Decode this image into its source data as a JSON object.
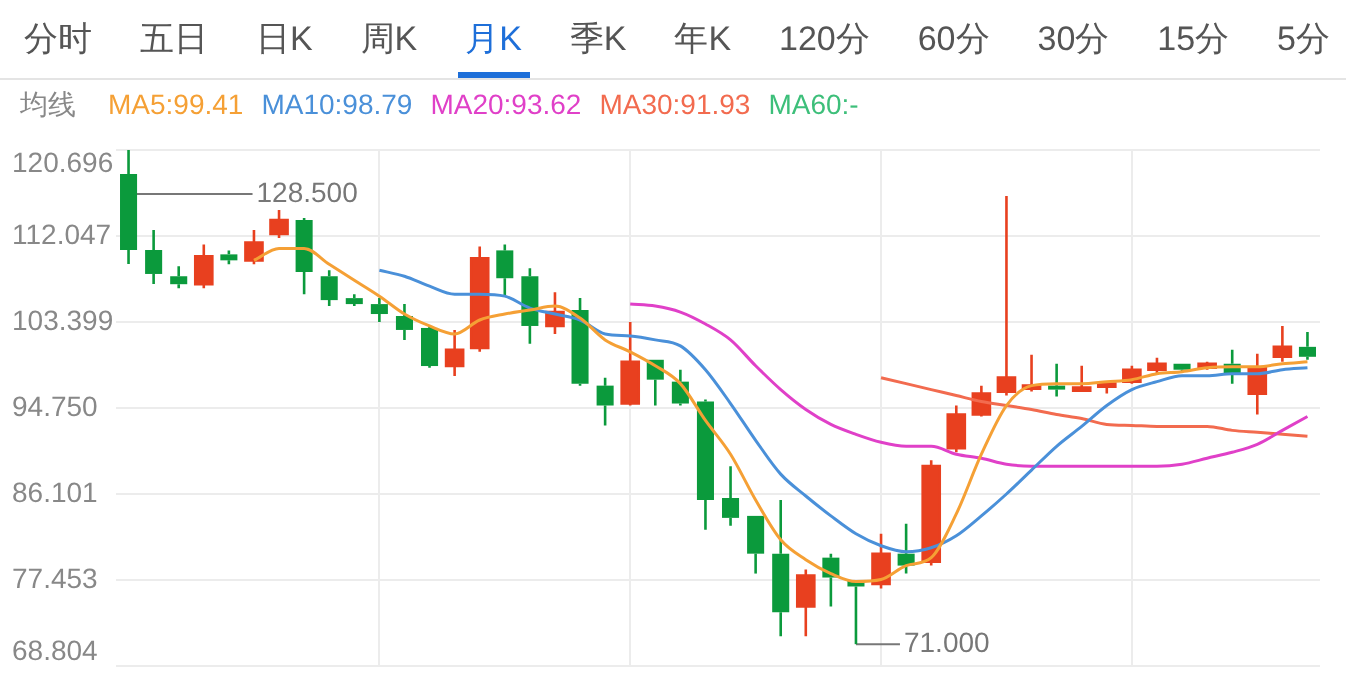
{
  "chart_data": {
    "type": "candlestick",
    "legend_title": "均线",
    "legend": "top left",
    "grid": true,
    "tick_labels": "y",
    "annotations": [
      "分时",
      "五日",
      "日K",
      "周K",
      "月K",
      "季K",
      "年K",
      "120分",
      "60分",
      "30分",
      "15分",
      "5分",
      {
        "text": "128.500"
      },
      {
        "text": "71.000"
      }
    ],
    "categories": [
      null,
      null,
      null,
      null,
      null,
      null,
      null,
      null,
      null,
      null,
      null,
      null,
      null,
      null,
      null,
      null,
      null,
      null,
      null,
      null,
      null,
      null,
      null,
      null,
      null,
      null,
      null,
      null,
      null,
      null,
      null,
      null,
      null,
      null,
      null,
      null,
      null,
      null,
      null,
      null,
      null,
      null,
      null,
      null,
      null,
      null,
      null,
      null
    ],
    "ylim": [
      68.804,
      120.696
    ],
    "yticks": [
      68.804,
      77.453,
      86.101,
      {
        "value": 94.75,
        "label": "94.750"
      },
      103.399,
      112.047,
      120.696
    ],
    "ohlc": [
      [
        118.28,
        120.696,
        109.23,
        110.64
      ],
      [
        110.64,
        112.65,
        107.22,
        108.23
      ],
      [
        108.0,
        109.0,
        106.8,
        107.2
      ],
      [
        107.2,
        111.2,
        106.8,
        110.0
      ],
      [
        110.2,
        110.6,
        109.2,
        109.6
      ],
      [
        109.6,
        112.65,
        109.2,
        111.4
      ],
      [
        112.25,
        114.66,
        111.85,
        113.65
      ],
      [
        113.65,
        113.85,
        106.2,
        108.43
      ],
      [
        108.0,
        108.6,
        105.0,
        105.6
      ],
      [
        105.8,
        106.2,
        105.0,
        105.2
      ],
      [
        105.2,
        105.8,
        103.4,
        104.2
      ],
      [
        104.0,
        105.2,
        101.6,
        102.6
      ],
      [
        102.8,
        103.0,
        98.8,
        98.97
      ],
      [
        98.97,
        102.6,
        97.97,
        100.6
      ],
      [
        100.8,
        111.0,
        100.4,
        109.8
      ],
      [
        110.6,
        111.2,
        106.0,
        107.8
      ],
      [
        108.0,
        108.8,
        101.2,
        103.0
      ],
      [
        103.0,
        106.4,
        102.2,
        104.4
      ],
      [
        104.6,
        105.8,
        97.0,
        97.2
      ],
      [
        97.0,
        97.8,
        93.0,
        95.0
      ],
      [
        95.2,
        103.4,
        95.0,
        99.4
      ],
      [
        99.6,
        99.6,
        95.0,
        97.6
      ],
      [
        97.4,
        98.6,
        95.0,
        95.2
      ],
      [
        95.4,
        95.6,
        82.5,
        85.5
      ],
      [
        85.7,
        88.9,
        82.9,
        83.7
      ],
      [
        83.9,
        83.9,
        78.1,
        80.1
      ],
      [
        80.1,
        85.5,
        71.8,
        74.2
      ],
      [
        74.8,
        78.5,
        71.8,
        77.9
      ],
      [
        79.7,
        80.1,
        74.8,
        77.7
      ],
      [
        77.45,
        77.45,
        71.0,
        76.8
      ],
      [
        77.05,
        82.1,
        76.6,
        80.1
      ],
      [
        80.1,
        83.1,
        78.1,
        78.9
      ],
      [
        79.3,
        89.5,
        78.9,
        88.9
      ],
      [
        90.7,
        95.0,
        90.3,
        94.1
      ],
      [
        94.1,
        97.0,
        93.9,
        96.2
      ],
      [
        96.4,
        116.07,
        96.0,
        97.8
      ],
      [
        96.8,
        100.1,
        96.4,
        97.0
      ],
      [
        97.0,
        99.2,
        95.9,
        96.6
      ],
      [
        96.6,
        99.0,
        96.4,
        96.8
      ],
      [
        97.0,
        97.4,
        96.2,
        97.2
      ],
      [
        97.4,
        99.0,
        97.2,
        98.6
      ],
      [
        98.6,
        99.8,
        98.2,
        99.2
      ],
      [
        99.2,
        99.2,
        98.4,
        98.6
      ],
      [
        98.8,
        99.4,
        98.6,
        99.2
      ],
      [
        99.2,
        100.6,
        97.2,
        98.2
      ],
      [
        96.2,
        100.2,
        94.1,
        98.8
      ],
      [
        99.9,
        103.0,
        99.4,
        100.9
      ],
      [
        100.9,
        102.4,
        99.6,
        99.9
      ]
    ],
    "colors": [
      "#0b9a3c",
      "#0b9a3c",
      "#0b9a3c",
      "#e8401f",
      "#0b9a3c",
      "#e8401f",
      "#e8401f",
      "#0b9a3c",
      "#0b9a3c",
      "#0b9a3c",
      "#0b9a3c",
      "#0b9a3c",
      "#0b9a3c",
      "#e8401f",
      "#e8401f",
      "#0b9a3c",
      "#0b9a3c",
      "#e8401f",
      "#0b9a3c",
      "#0b9a3c",
      "#e8401f",
      "#0b9a3c",
      "#0b9a3c",
      "#0b9a3c",
      "#0b9a3c",
      "#0b9a3c",
      "#0b9a3c",
      "#e8401f",
      "#0b9a3c",
      "#0b9a3c",
      "#e8401f",
      "#0b9a3c",
      "#e8401f",
      "#e8401f",
      "#e8401f",
      "#e8401f",
      "#e8401f",
      "#0b9a3c",
      "#e8401f",
      "#e8401f",
      "#e8401f",
      "#e8401f",
      "#0b9a3c",
      "#e8401f",
      "#0b9a3c",
      "#e8401f",
      "#e8401f",
      "#0b9a3c"
    ],
    "series": [
      {
        "name": "MA5:99.41",
        "color": "#f5a035",
        "type": "line",
        "values": [
          null,
          null,
          null,
          null,
          null,
          109.6,
          110.8,
          110.8,
          109.2,
          107.6,
          106.0,
          104.2,
          103.0,
          102.2,
          103.6,
          104.2,
          104.6,
          105.0,
          103.8,
          101.6,
          100.4,
          99.0,
          97.2,
          93.5,
          90.1,
          85.5,
          81.5,
          79.5,
          78.1,
          77.3,
          77.5,
          78.9,
          79.7,
          84.1,
          90.1,
          95.0,
          97.0,
          97.2,
          97.2,
          97.4,
          97.6,
          98.2,
          98.4,
          98.8,
          98.9,
          98.9,
          99.2,
          99.4
        ]
      },
      {
        "name": "MA10:98.79",
        "color": "#4a90d9",
        "type": "line",
        "values": [
          null,
          null,
          null,
          null,
          null,
          null,
          null,
          null,
          null,
          null,
          108.6,
          108.0,
          107.0,
          106.2,
          106.2,
          106.0,
          104.8,
          104.2,
          103.6,
          102.2,
          102.0,
          101.6,
          101.0,
          98.6,
          95.2,
          91.5,
          88.1,
          85.9,
          83.9,
          82.1,
          80.9,
          80.3,
          80.7,
          81.9,
          83.9,
          86.1,
          88.5,
          90.9,
          92.9,
          95.0,
          96.6,
          97.4,
          98.0,
          98.0,
          98.2,
          98.2,
          98.6,
          98.8
        ]
      },
      {
        "name": "MA20:93.62",
        "color": "#e040c8",
        "type": "line",
        "values": [
          null,
          null,
          null,
          null,
          null,
          null,
          null,
          null,
          null,
          null,
          null,
          null,
          null,
          null,
          null,
          null,
          null,
          null,
          null,
          null,
          105.2,
          105.0,
          104.4,
          103.2,
          101.6,
          99.0,
          96.6,
          94.6,
          93.1,
          92.1,
          91.3,
          90.9,
          90.9,
          90.1,
          89.7,
          89.1,
          88.9,
          88.9,
          88.9,
          88.9,
          88.9,
          88.9,
          89.1,
          89.7,
          90.3,
          91.1,
          92.5,
          93.9
        ]
      },
      {
        "name": "MA30:91.93",
        "color": "#f26b4f",
        "type": "line",
        "values": [
          null,
          null,
          null,
          null,
          null,
          null,
          null,
          null,
          null,
          null,
          null,
          null,
          null,
          null,
          null,
          null,
          null,
          null,
          null,
          null,
          null,
          null,
          null,
          null,
          null,
          null,
          null,
          null,
          null,
          null,
          97.8,
          97.2,
          96.6,
          96.0,
          95.4,
          95.0,
          94.6,
          94.1,
          93.7,
          93.1,
          93.0,
          92.9,
          92.9,
          92.9,
          92.5,
          92.3,
          92.1,
          91.9
        ]
      },
      {
        "name": "MA60:-",
        "color": "#3dbf7a",
        "type": "line",
        "values": [
          null,
          null,
          null,
          null,
          null,
          null,
          null,
          null,
          null,
          null,
          null,
          null,
          null,
          null,
          null,
          null,
          null,
          null,
          null,
          null,
          null,
          null,
          null,
          null,
          null,
          null,
          null,
          null,
          null,
          null,
          null,
          null,
          null,
          null,
          null,
          null,
          null,
          null,
          null,
          null,
          null,
          null,
          null,
          null,
          null,
          null,
          null,
          null
        ]
      }
    ]
  }
}
